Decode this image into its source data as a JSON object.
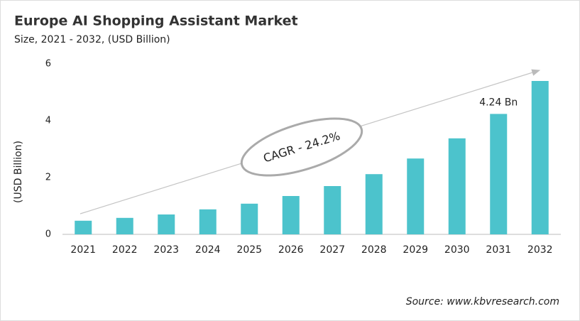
{
  "chart_data": {
    "type": "bar",
    "title": "Europe AI Shopping Assistant Market",
    "subtitle": "Size, 2021 - 2032, (USD Billion)",
    "y_label": "(USD Billion)",
    "categories": [
      "2021",
      "2022",
      "2023",
      "2024",
      "2025",
      "2026",
      "2027",
      "2028",
      "2029",
      "2030",
      "2031",
      "2032"
    ],
    "values": [
      0.48,
      0.58,
      0.7,
      0.88,
      1.08,
      1.35,
      1.7,
      2.12,
      2.67,
      3.38,
      4.24,
      5.4
    ],
    "value_labels": [
      null,
      null,
      null,
      null,
      null,
      null,
      null,
      null,
      null,
      null,
      "4.24 Bn",
      null
    ],
    "color": "#4cc3cc",
    "ylim": [
      0,
      6
    ],
    "yticks": [
      0,
      2,
      4,
      6
    ],
    "grid": false,
    "annotation": "CAGR - 24.2%",
    "source": "Source: www.kbvresearch.com"
  }
}
